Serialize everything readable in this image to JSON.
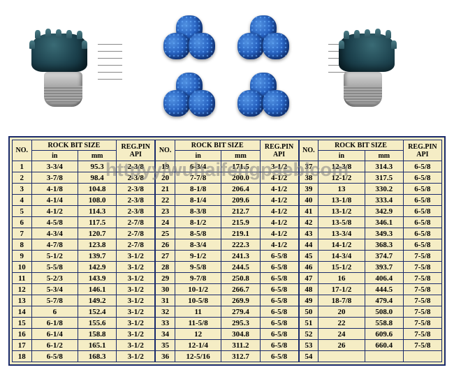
{
  "watermark": "httpyy/wuhaifengpaeblcom",
  "tables": {
    "headers": {
      "no": "NO.",
      "rock_bit_size": "ROCK BIT SIZE",
      "in": "in",
      "mm": "mm",
      "reg_pin_api": "REG.PIN API"
    },
    "section1": [
      {
        "no": "1",
        "in": "3-3/4",
        "mm": "95.3",
        "api": "2-3/8"
      },
      {
        "no": "2",
        "in": "3-7/8",
        "mm": "98.4",
        "api": "2-3/8"
      },
      {
        "no": "3",
        "in": "4-1/8",
        "mm": "104.8",
        "api": "2-3/8"
      },
      {
        "no": "4",
        "in": "4-1/4",
        "mm": "108.0",
        "api": "2-3/8"
      },
      {
        "no": "5",
        "in": "4-1/2",
        "mm": "114.3",
        "api": "2-3/8"
      },
      {
        "no": "6",
        "in": "4-5/8",
        "mm": "117.5",
        "api": "2-7/8"
      },
      {
        "no": "7",
        "in": "4-3/4",
        "mm": "120.7",
        "api": "2-7/8"
      },
      {
        "no": "8",
        "in": "4-7/8",
        "mm": "123.8",
        "api": "2-7/8"
      },
      {
        "no": "9",
        "in": "5-1/2",
        "mm": "139.7",
        "api": "3-1/2"
      },
      {
        "no": "10",
        "in": "5-5/8",
        "mm": "142.9",
        "api": "3-1/2"
      },
      {
        "no": "11",
        "in": "5-2/3",
        "mm": "143.9",
        "api": "3-1/2"
      },
      {
        "no": "12",
        "in": "5-3/4",
        "mm": "146.1",
        "api": "3-1/2"
      },
      {
        "no": "13",
        "in": "5-7/8",
        "mm": "149.2",
        "api": "3-1/2"
      },
      {
        "no": "14",
        "in": "6",
        "mm": "152.4",
        "api": "3-1/2"
      },
      {
        "no": "15",
        "in": "6-1/8",
        "mm": "155.6",
        "api": "3-1/2"
      },
      {
        "no": "16",
        "in": "6-1/4",
        "mm": "158.8",
        "api": "3-1/2"
      },
      {
        "no": "17",
        "in": "6-1/2",
        "mm": "165.1",
        "api": "3-1/2"
      },
      {
        "no": "18",
        "in": "6-5/8",
        "mm": "168.3",
        "api": "3-1/2"
      }
    ],
    "section2": [
      {
        "no": "19",
        "in": "6-3/4",
        "mm": "171.5",
        "api": "3-1/2"
      },
      {
        "no": "20",
        "in": "7-7/8",
        "mm": "200.0",
        "api": "4-1/2"
      },
      {
        "no": "21",
        "in": "8-1/8",
        "mm": "206.4",
        "api": "4-1/2"
      },
      {
        "no": "22",
        "in": "8-1/4",
        "mm": "209.6",
        "api": "4-1/2"
      },
      {
        "no": "23",
        "in": "8-3/8",
        "mm": "212.7",
        "api": "4-1/2"
      },
      {
        "no": "24",
        "in": "8-1/2",
        "mm": "215.9",
        "api": "4-1/2"
      },
      {
        "no": "25",
        "in": "8-5/8",
        "mm": "219.1",
        "api": "4-1/2"
      },
      {
        "no": "26",
        "in": "8-3/4",
        "mm": "222.3",
        "api": "4-1/2"
      },
      {
        "no": "27",
        "in": "9-1/2",
        "mm": "241.3",
        "api": "6-5/8"
      },
      {
        "no": "28",
        "in": "9-5/8",
        "mm": "244.5",
        "api": "6-5/8"
      },
      {
        "no": "29",
        "in": "9-7/8",
        "mm": "250.8",
        "api": "6-5/8"
      },
      {
        "no": "30",
        "in": "10-1/2",
        "mm": "266.7",
        "api": "6-5/8"
      },
      {
        "no": "31",
        "in": "10-5/8",
        "mm": "269.9",
        "api": "6-5/8"
      },
      {
        "no": "32",
        "in": "11",
        "mm": "279.4",
        "api": "6-5/8"
      },
      {
        "no": "33",
        "in": "11-5/8",
        "mm": "295.3",
        "api": "6-5/8"
      },
      {
        "no": "34",
        "in": "12",
        "mm": "304.8",
        "api": "6-5/8"
      },
      {
        "no": "35",
        "in": "12-1/4",
        "mm": "311.2",
        "api": "6-5/8"
      },
      {
        "no": "36",
        "in": "12-5/16",
        "mm": "312.7",
        "api": "6-5/8"
      }
    ],
    "section3": [
      {
        "no": "37",
        "in": "12-3/8",
        "mm": "314.3",
        "api": "6-5/8"
      },
      {
        "no": "38",
        "in": "12-1/2",
        "mm": "317.5",
        "api": "6-5/8"
      },
      {
        "no": "39",
        "in": "13",
        "mm": "330.2",
        "api": "6-5/8"
      },
      {
        "no": "40",
        "in": "13-1/8",
        "mm": "333.4",
        "api": "6-5/8"
      },
      {
        "no": "41",
        "in": "13-1/2",
        "mm": "342.9",
        "api": "6-5/8"
      },
      {
        "no": "42",
        "in": "13-5/8",
        "mm": "346.1",
        "api": "6-5/8"
      },
      {
        "no": "43",
        "in": "13-3/4",
        "mm": "349.3",
        "api": "6-5/8"
      },
      {
        "no": "44",
        "in": "14-1/2",
        "mm": "368.3",
        "api": "6-5/8"
      },
      {
        "no": "45",
        "in": "14-3/4",
        "mm": "374.7",
        "api": "7-5/8"
      },
      {
        "no": "46",
        "in": "15-1/2",
        "mm": "393.7",
        "api": "7-5/8"
      },
      {
        "no": "47",
        "in": "16",
        "mm": "406.4",
        "api": "7-5/8"
      },
      {
        "no": "48",
        "in": "17-1/2",
        "mm": "444.5",
        "api": "7-5/8"
      },
      {
        "no": "49",
        "in": "18-7/8",
        "mm": "479.4",
        "api": "7-5/8"
      },
      {
        "no": "50",
        "in": "20",
        "mm": "508.0",
        "api": "7-5/8"
      },
      {
        "no": "51",
        "in": "22",
        "mm": "558.8",
        "api": "7-5/8"
      },
      {
        "no": "52",
        "in": "24",
        "mm": "609.6",
        "api": "7-5/8"
      },
      {
        "no": "53",
        "in": "26",
        "mm": "660.4",
        "api": "7-5/8"
      },
      {
        "no": "54",
        "in": "",
        "mm": "",
        "api": ""
      }
    ]
  },
  "styling": {
    "table_bg": "#f5edc5",
    "border_color": "#1a2a6b",
    "text_color": "#000000",
    "page_bg": "#ffffff"
  }
}
